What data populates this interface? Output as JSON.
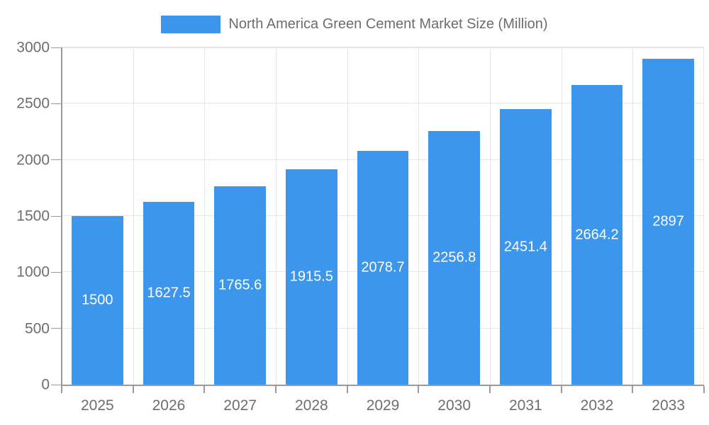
{
  "chart_data": {
    "type": "bar",
    "title": "",
    "legend": {
      "label": "North America Green Cement Market Size (Million)",
      "position": "top"
    },
    "categories": [
      "2025",
      "2026",
      "2027",
      "2028",
      "2029",
      "2030",
      "2031",
      "2032",
      "2033"
    ],
    "series": [
      {
        "name": "North America Green Cement Market Size (Million)",
        "values": [
          1500,
          1627.5,
          1765.6,
          1915.5,
          2078.7,
          2256.8,
          2451.4,
          2664.2,
          2897
        ]
      }
    ],
    "value_labels": [
      "1500",
      "1627.5",
      "1765.6",
      "1915.5",
      "2078.7",
      "2256.8",
      "2451.4",
      "2664.2",
      "2897"
    ],
    "xlabel": "",
    "ylabel": "",
    "ylim": [
      0,
      3000
    ],
    "yticks": [
      0,
      500,
      1000,
      1500,
      2000,
      2500,
      3000
    ],
    "grid": true,
    "value_label_position": "inside-middle",
    "colors": {
      "bar": "#3C96EB",
      "axis": "#9a9a9a",
      "grid": "#e6e6e6",
      "tick_text": "#6e6e6e",
      "legend_text": "#6d6d6d",
      "value_label": "#ffffff",
      "background": "#ffffff"
    }
  }
}
